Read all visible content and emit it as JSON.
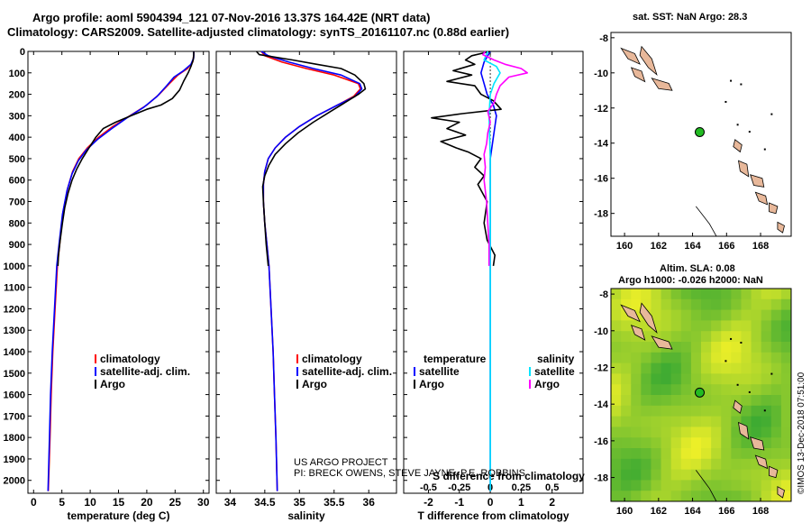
{
  "title_line1": "Argo profile: aoml 5904394_121 07-Nov-2016 13.37S 164.42E (NRT data)",
  "title_line2": "Climatology: CARS2009. Satellite-adjusted climatology: synTS_20161107.nc (0.88d earlier)",
  "credit_line1": "US ARGO PROJECT",
  "credit_line2": "PI: BRECK OWENS, STEVE JAYNE, P.E. ROBBINS",
  "watermark": "©IMOS 13-Dec-2018 07:51:00",
  "map_top_title": "sat. SST: NaN Argo: 28.3",
  "map_bottom_title1": "Altim. SLA: 0.08",
  "map_bottom_title2": "Argo h1000: -0.026 h2000: NaN",
  "colors": {
    "argo": "#000000",
    "climatology": "#ff0000",
    "satellite": "#0000ff",
    "sal_satellite": "#00e5ff",
    "sal_argo": "#ff00ff",
    "island_fill": "#e8b89a",
    "float_marker": "#22bb22",
    "sea": "#ffffff"
  },
  "chart_data": [
    {
      "type": "line",
      "xlabel": "temperature (deg C)",
      "xlim": [
        -1,
        31
      ],
      "xticks": [
        0,
        5,
        10,
        15,
        20,
        25,
        30
      ],
      "ylim": [
        2060,
        0
      ],
      "yticks": [
        0,
        100,
        200,
        300,
        400,
        500,
        600,
        700,
        800,
        900,
        1000,
        1100,
        1200,
        1300,
        1400,
        1500,
        1600,
        1700,
        1800,
        1900,
        2000
      ],
      "legend": [
        "climatology",
        "satellite-adj. clim.",
        "Argo"
      ],
      "series": [
        {
          "name": "climatology",
          "color_key": "climatology",
          "points": [
            [
              28.3,
              0
            ],
            [
              28.3,
              20
            ],
            [
              28.1,
              50
            ],
            [
              27.2,
              80
            ],
            [
              25.5,
              110
            ],
            [
              24,
              150
            ],
            [
              22.2,
              200
            ],
            [
              20,
              250
            ],
            [
              17,
              300
            ],
            [
              14,
              350
            ],
            [
              11.5,
              400
            ],
            [
              9.5,
              450
            ],
            [
              8,
              500
            ],
            [
              6.9,
              560
            ],
            [
              6,
              640
            ],
            [
              5.2,
              750
            ],
            [
              4.6,
              900
            ],
            [
              4.2,
              1000
            ],
            [
              3.8,
              1200
            ],
            [
              3.4,
              1400
            ],
            [
              3.1,
              1600
            ],
            [
              2.9,
              1800
            ],
            [
              2.6,
              2050
            ]
          ]
        },
        {
          "name": "satellite-adj. clim.",
          "color_key": "satellite",
          "points": [
            [
              28.3,
              0
            ],
            [
              28.3,
              30
            ],
            [
              27.8,
              60
            ],
            [
              26.5,
              90
            ],
            [
              24.8,
              120
            ],
            [
              23.5,
              160
            ],
            [
              21.8,
              210
            ],
            [
              19.5,
              260
            ],
            [
              16.5,
              310
            ],
            [
              13.8,
              360
            ],
            [
              11.3,
              410
            ],
            [
              9.3,
              460
            ],
            [
              7.9,
              510
            ],
            [
              6.8,
              570
            ],
            [
              5.9,
              650
            ],
            [
              5.1,
              760
            ],
            [
              4.5,
              900
            ],
            [
              4.1,
              1000
            ],
            [
              3.7,
              1200
            ],
            [
              3.3,
              1400
            ],
            [
              3,
              1600
            ],
            [
              2.8,
              1800
            ],
            [
              2.55,
              2050
            ]
          ]
        },
        {
          "name": "Argo",
          "color_key": "argo",
          "points": [
            [
              28.3,
              0
            ],
            [
              28.3,
              15
            ],
            [
              28.2,
              40
            ],
            [
              27.8,
              70
            ],
            [
              27.3,
              100
            ],
            [
              26.5,
              140
            ],
            [
              25.8,
              180
            ],
            [
              24.5,
              220
            ],
            [
              22.5,
              250
            ],
            [
              20,
              270
            ],
            [
              17.2,
              300
            ],
            [
              14.5,
              330
            ],
            [
              12.3,
              360
            ],
            [
              11,
              400
            ],
            [
              9.8,
              450
            ],
            [
              8.6,
              500
            ],
            [
              7.6,
              550
            ],
            [
              6.8,
              600
            ],
            [
              6.1,
              660
            ],
            [
              5.5,
              730
            ],
            [
              5.1,
              800
            ],
            [
              4.7,
              880
            ],
            [
              4.4,
              950
            ],
            [
              4.3,
              1000
            ]
          ]
        }
      ]
    },
    {
      "type": "line",
      "xlabel": "salinity",
      "xlim": [
        33.8,
        36.4
      ],
      "xticks": [
        34,
        34.5,
        35,
        35.5,
        36
      ],
      "xtick_labels": [
        "34",
        "34.5",
        "35",
        "35.5",
        "36"
      ],
      "ylim": [
        2060,
        0
      ],
      "legend": [
        "climatology",
        "satellite-adj. clim.",
        "Argo"
      ],
      "series": [
        {
          "name": "climatology",
          "color_key": "climatology",
          "points": [
            [
              34.45,
              0
            ],
            [
              34.5,
              20
            ],
            [
              34.75,
              50
            ],
            [
              35.1,
              80
            ],
            [
              35.5,
              110
            ],
            [
              35.85,
              150
            ],
            [
              35.88,
              175
            ],
            [
              35.78,
              210
            ],
            [
              35.55,
              250
            ],
            [
              35.25,
              300
            ],
            [
              35,
              350
            ],
            [
              34.8,
              400
            ],
            [
              34.65,
              450
            ],
            [
              34.55,
              500
            ],
            [
              34.5,
              560
            ],
            [
              34.48,
              620
            ],
            [
              34.48,
              700
            ],
            [
              34.5,
              800
            ],
            [
              34.53,
              900
            ],
            [
              34.56,
              1000
            ],
            [
              34.59,
              1200
            ],
            [
              34.62,
              1400
            ],
            [
              34.64,
              1600
            ],
            [
              34.66,
              1800
            ],
            [
              34.68,
              2050
            ]
          ]
        },
        {
          "name": "satellite-adj. clim.",
          "color_key": "satellite",
          "points": [
            [
              34.45,
              0
            ],
            [
              34.55,
              20
            ],
            [
              34.85,
              50
            ],
            [
              35.2,
              80
            ],
            [
              35.6,
              110
            ],
            [
              35.87,
              150
            ],
            [
              35.9,
              175
            ],
            [
              35.8,
              210
            ],
            [
              35.55,
              250
            ],
            [
              35.25,
              300
            ],
            [
              35,
              350
            ],
            [
              34.8,
              400
            ],
            [
              34.65,
              450
            ],
            [
              34.55,
              500
            ],
            [
              34.5,
              560
            ],
            [
              34.48,
              620
            ],
            [
              34.48,
              700
            ],
            [
              34.5,
              800
            ],
            [
              34.53,
              900
            ],
            [
              34.56,
              1000
            ],
            [
              34.59,
              1200
            ],
            [
              34.62,
              1400
            ],
            [
              34.64,
              1600
            ],
            [
              34.66,
              1800
            ],
            [
              34.68,
              2050
            ]
          ]
        },
        {
          "name": "Argo",
          "color_key": "argo",
          "points": [
            [
              34.38,
              0
            ],
            [
              34.42,
              15
            ],
            [
              34.9,
              40
            ],
            [
              35.25,
              60
            ],
            [
              35.6,
              80
            ],
            [
              35.8,
              110
            ],
            [
              35.93,
              150
            ],
            [
              35.95,
              175
            ],
            [
              35.85,
              200
            ],
            [
              35.65,
              240
            ],
            [
              35.45,
              280
            ],
            [
              35.2,
              330
            ],
            [
              34.98,
              380
            ],
            [
              34.8,
              430
            ],
            [
              34.65,
              480
            ],
            [
              34.56,
              530
            ],
            [
              34.5,
              580
            ],
            [
              34.47,
              630
            ],
            [
              34.48,
              700
            ],
            [
              34.5,
              800
            ],
            [
              34.52,
              900
            ],
            [
              34.55,
              1000
            ]
          ]
        }
      ]
    },
    {
      "type": "line",
      "xlabel": "T difference from climatology",
      "top_xlabel": "S difference from climatology",
      "xlim": [
        -2.8,
        3
      ],
      "xticks": [
        -2,
        -1,
        0,
        1,
        2
      ],
      "top_xticks": [
        -0.5,
        -0.25,
        0,
        0.25,
        0.5
      ],
      "top_xtick_labels": [
        "-0.5",
        "-0.25",
        "0",
        "0.25",
        "0.5"
      ],
      "ylim": [
        2060,
        0
      ],
      "legend_left_title": "temperature",
      "legend_right_title": "salinity",
      "legend_left": [
        "satellite",
        "Argo"
      ],
      "legend_right": [
        "satellite",
        "Argo"
      ],
      "series": [
        {
          "name": "temperature satellite",
          "color_key": "satellite",
          "points": [
            [
              0,
              0
            ],
            [
              -0.2,
              50
            ],
            [
              -0.3,
              100
            ],
            [
              -0.2,
              150
            ],
            [
              -0.1,
              200
            ],
            [
              0.1,
              250
            ],
            [
              0.2,
              300
            ],
            [
              0.1,
              400
            ],
            [
              0,
              500
            ],
            [
              0,
              700
            ],
            [
              0,
              1000
            ],
            [
              0,
              1500
            ],
            [
              0,
              2050
            ]
          ]
        },
        {
          "name": "temperature Argo",
          "color_key": "argo",
          "points": [
            [
              0,
              0
            ],
            [
              -0.6,
              20
            ],
            [
              -0.8,
              40
            ],
            [
              -0.5,
              60
            ],
            [
              -1.2,
              90
            ],
            [
              -0.6,
              110
            ],
            [
              -1.4,
              140
            ],
            [
              -0.5,
              160
            ],
            [
              -0.3,
              200
            ],
            [
              0.1,
              230
            ],
            [
              0.35,
              270
            ],
            [
              -0.9,
              290
            ],
            [
              -1.9,
              310
            ],
            [
              -1,
              330
            ],
            [
              -1.4,
              360
            ],
            [
              -0.8,
              390
            ],
            [
              -1.6,
              420
            ],
            [
              -1.1,
              450
            ],
            [
              -0.7,
              470
            ],
            [
              -0.3,
              500
            ],
            [
              -0.5,
              540
            ],
            [
              -0.2,
              580
            ],
            [
              -0.4,
              620
            ],
            [
              -0.1,
              700
            ],
            [
              -0.2,
              800
            ],
            [
              -0.1,
              880
            ],
            [
              0.15,
              950
            ],
            [
              0.1,
              1000
            ]
          ]
        },
        {
          "name": "salinity satellite",
          "color_key": "sal_satellite",
          "points": [
            [
              -0.02,
              0
            ],
            [
              -0.05,
              40
            ],
            [
              0.05,
              70
            ],
            [
              0.08,
              100
            ],
            [
              0.03,
              150
            ],
            [
              0,
              200
            ],
            [
              -0.01,
              300
            ],
            [
              0,
              500
            ],
            [
              0,
              1000
            ],
            [
              0,
              2050
            ]
          ]
        },
        {
          "name": "salinity Argo",
          "color_key": "sal_argo",
          "points": [
            [
              -0.04,
              0
            ],
            [
              -0.06,
              15
            ],
            [
              0.03,
              40
            ],
            [
              0.12,
              60
            ],
            [
              0.25,
              80
            ],
            [
              0.3,
              100
            ],
            [
              0.15,
              120
            ],
            [
              0.08,
              160
            ],
            [
              0.05,
              200
            ],
            [
              0.03,
              240
            ],
            [
              -0.02,
              280
            ],
            [
              0,
              330
            ],
            [
              -0.02,
              380
            ],
            [
              -0.03,
              430
            ],
            [
              -0.05,
              480
            ],
            [
              -0.04,
              540
            ],
            [
              -0.05,
              600
            ],
            [
              -0.03,
              700
            ],
            [
              -0.02,
              800
            ],
            [
              -0.01,
              900
            ],
            [
              -0.01,
              1000
            ]
          ]
        }
      ]
    },
    {
      "type": "map",
      "title": "sat. SST: NaN Argo: 28.3",
      "xlim": [
        159.2,
        169.8
      ],
      "ylim": [
        -19.3,
        -7.7
      ],
      "xticks": [
        160,
        162,
        164,
        166,
        168
      ],
      "yticks": [
        -8,
        -10,
        -12,
        -14,
        -16,
        -18
      ],
      "float_position": [
        164.42,
        -13.37
      ]
    },
    {
      "type": "heatmap",
      "title": "Altim. SLA: 0.08",
      "xlim": [
        159.2,
        169.8
      ],
      "ylim": [
        -19.3,
        -7.7
      ],
      "xticks": [
        160,
        162,
        164,
        166,
        168
      ],
      "yticks": [
        -8,
        -10,
        -12,
        -14,
        -16,
        -18
      ],
      "float_position": [
        164.42,
        -13.37
      ]
    }
  ]
}
